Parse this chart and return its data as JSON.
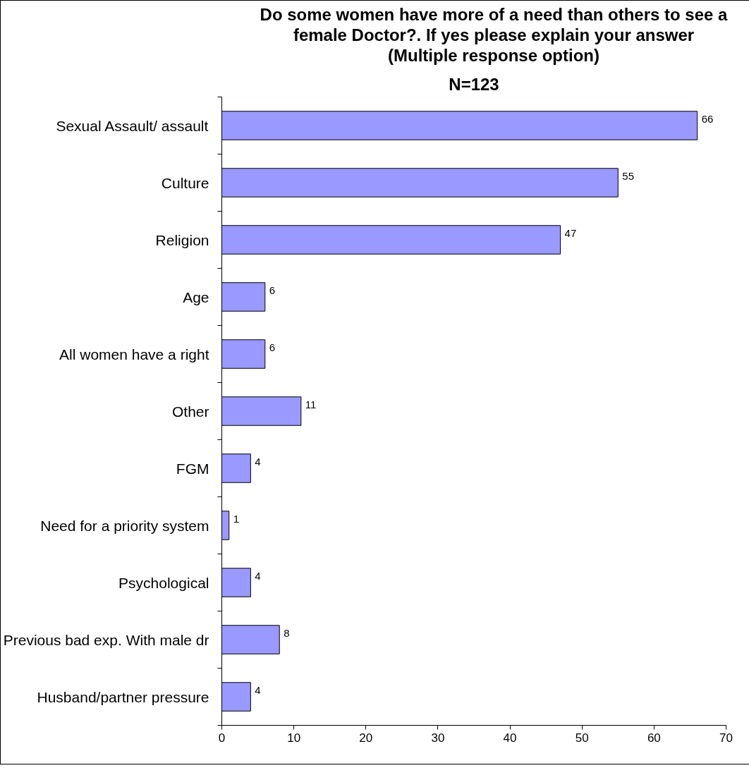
{
  "chart_data": {
    "type": "bar",
    "orientation": "horizontal",
    "title": "Do some women have more of a need than others to see a\nfemale Doctor?. If yes please explain your answer\n(Multiple response option)",
    "subtitle": "N=123",
    "categories": [
      "Sexual Assault/ assault",
      "Culture",
      "Religion",
      "Age",
      "All women have a right",
      "Other",
      "FGM",
      "Need for a priority system",
      "Psychological",
      "Previous bad exp. With male dr",
      "Husband/partner pressure"
    ],
    "values": [
      66,
      55,
      47,
      6,
      6,
      11,
      4,
      1,
      4,
      8,
      4
    ],
    "color": "#9999ff",
    "xlim": [
      0,
      70
    ],
    "xticks": [
      0,
      10,
      20,
      30,
      40,
      50,
      60,
      70
    ],
    "data_labels": true,
    "grid": false
  }
}
